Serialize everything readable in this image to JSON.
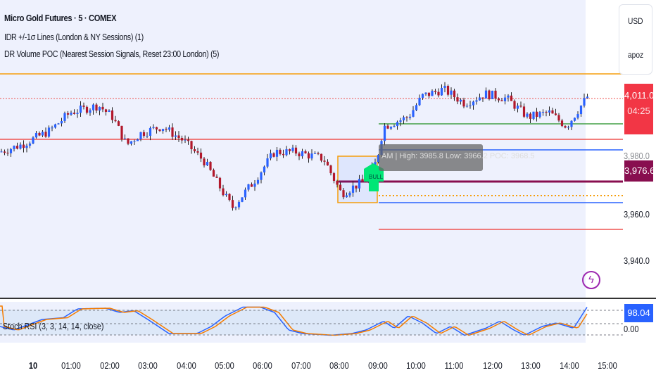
{
  "header": {
    "symbol": "Micro Gold Futures · 5 · COMEX",
    "indicator1": "IDR +/-1σ Lines (London & NY Sessions) (1)",
    "indicator2": "DR Volume POC (Nearest Session Signals, Reset 23:00 London) (5)"
  },
  "axis_box": {
    "currency": "USD",
    "unit": "apoz"
  },
  "price_axis": {
    "labels": [
      "3,980.0",
      "3,960.0",
      "3,940.0"
    ],
    "last_price": "4,011.0",
    "countdown": "04:25",
    "poc_price": "3,976.6"
  },
  "stoch": {
    "label": "Stoch RSI (3, 3, 14, 14, close)",
    "value": "98.04",
    "zero": "0.00"
  },
  "time_axis": [
    "10",
    "01:00",
    "02:00",
    "03:00",
    "04:00",
    "05:00",
    "06:00",
    "07:00",
    "08:00",
    "09:00",
    "10:00",
    "11:00",
    "12:00",
    "13:00",
    "14:00",
    "15:00"
  ],
  "tooltip": "AM | High: 3985.8 Low: 3966.2 POC: 3968.5",
  "signal": "BULL",
  "price_path": [
    [
      0,
      3987
    ],
    [
      30,
      3990
    ],
    [
      70,
      3996
    ],
    [
      100,
      4004
    ],
    [
      140,
      4007
    ],
    [
      160,
      4002
    ],
    [
      180,
      3990
    ],
    [
      200,
      3995
    ],
    [
      230,
      3998
    ],
    [
      260,
      3992
    ],
    [
      290,
      3983
    ],
    [
      330,
      3963
    ],
    [
      360,
      3974
    ],
    [
      390,
      3987
    ],
    [
      420,
      3987
    ],
    [
      460,
      3984
    ],
    [
      485,
      3969
    ],
    [
      520,
      3975
    ],
    [
      535,
      3983
    ],
    [
      545,
      3998
    ],
    [
      580,
      4002
    ],
    [
      600,
      4011
    ],
    [
      630,
      4014
    ],
    [
      660,
      4008
    ],
    [
      690,
      4012
    ],
    [
      720,
      4010
    ],
    [
      750,
      4002
    ],
    [
      780,
      4004
    ],
    [
      805,
      3998
    ],
    [
      835,
      4011
    ]
  ],
  "stoch_path": [
    [
      0,
      40
    ],
    [
      20,
      30
    ],
    [
      60,
      60
    ],
    [
      90,
      65
    ],
    [
      110,
      90
    ],
    [
      150,
      92
    ],
    [
      170,
      80
    ],
    [
      190,
      85
    ],
    [
      210,
      60
    ],
    [
      240,
      20
    ],
    [
      280,
      20
    ],
    [
      300,
      40
    ],
    [
      320,
      70
    ],
    [
      345,
      95
    ],
    [
      370,
      95
    ],
    [
      390,
      80
    ],
    [
      410,
      30
    ],
    [
      430,
      20
    ],
    [
      470,
      15
    ],
    [
      500,
      20
    ],
    [
      520,
      30
    ],
    [
      545,
      55
    ],
    [
      560,
      35
    ],
    [
      580,
      70
    ],
    [
      600,
      50
    ],
    [
      620,
      20
    ],
    [
      640,
      40
    ],
    [
      660,
      15
    ],
    [
      690,
      35
    ],
    [
      710,
      55
    ],
    [
      730,
      30
    ],
    [
      745,
      15
    ],
    [
      770,
      40
    ],
    [
      790,
      50
    ],
    [
      815,
      35
    ],
    [
      835,
      98
    ]
  ],
  "colors": {
    "up": "#2962ff",
    "down": "#b2182b",
    "orange": "#f59e0b",
    "red": "#ef5350",
    "green": "#43a047",
    "blue": "#2962ff",
    "maroon": "#880e4f",
    "signal": "#00e676"
  }
}
